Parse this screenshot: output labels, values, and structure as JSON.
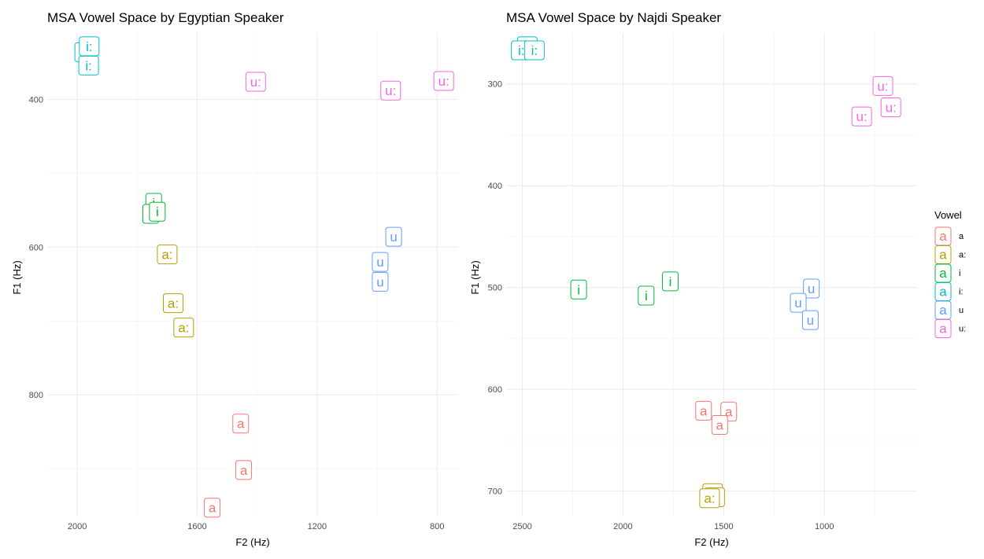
{
  "chart_data": [
    {
      "type": "scatter",
      "title": "MSA Vowel Space by Egyptian Speaker",
      "xlabel": "F2 (Hz)",
      "ylabel": "F1 (Hz)",
      "x_reversed": true,
      "y_reversed": true,
      "xlim": [
        2100,
        730
      ],
      "ylim": [
        310,
        965
      ],
      "x_ticks": [
        2000,
        1600,
        1200,
        800
      ],
      "y_ticks": [
        400,
        600,
        800
      ],
      "points": [
        {
          "vowel": "i:",
          "f2": 1975,
          "f1": 336
        },
        {
          "vowel": "i:",
          "f2": 1960,
          "f1": 328
        },
        {
          "vowel": "i:",
          "f2": 1962,
          "f1": 354
        },
        {
          "vowel": "u:",
          "f2": 1405,
          "f1": 376
        },
        {
          "vowel": "u:",
          "f2": 955,
          "f1": 388
        },
        {
          "vowel": "u:",
          "f2": 778,
          "f1": 375
        },
        {
          "vowel": "i",
          "f2": 1745,
          "f1": 540
        },
        {
          "vowel": "i",
          "f2": 1755,
          "f1": 555
        },
        {
          "vowel": "i",
          "f2": 1733,
          "f1": 552
        },
        {
          "vowel": "u",
          "f2": 945,
          "f1": 586
        },
        {
          "vowel": "u",
          "f2": 990,
          "f1": 620
        },
        {
          "vowel": "u",
          "f2": 990,
          "f1": 647
        },
        {
          "vowel": "a:",
          "f2": 1700,
          "f1": 610
        },
        {
          "vowel": "a:",
          "f2": 1680,
          "f1": 676
        },
        {
          "vowel": "a:",
          "f2": 1645,
          "f1": 709
        },
        {
          "vowel": "a",
          "f2": 1455,
          "f1": 839
        },
        {
          "vowel": "a",
          "f2": 1445,
          "f1": 902
        },
        {
          "vowel": "a",
          "f2": 1550,
          "f1": 953
        }
      ]
    },
    {
      "type": "scatter",
      "title": "MSA Vowel Space by Najdi Speaker",
      "xlabel": "F2 (Hz)",
      "ylabel": "F1 (Hz)",
      "x_reversed": true,
      "y_reversed": true,
      "xlim": [
        2580,
        540
      ],
      "ylim": [
        250,
        725
      ],
      "x_ticks": [
        2500,
        2000,
        1500,
        1000
      ],
      "y_ticks": [
        300,
        400,
        500,
        600,
        700
      ],
      "points": [
        {
          "vowel": "i:",
          "f2": 2475,
          "f1": 263
        },
        {
          "vowel": "i:",
          "f2": 2505,
          "f1": 267
        },
        {
          "vowel": "i:",
          "f2": 2440,
          "f1": 267
        },
        {
          "vowel": "u:",
          "f2": 710,
          "f1": 302
        },
        {
          "vowel": "u:",
          "f2": 815,
          "f1": 332
        },
        {
          "vowel": "u:",
          "f2": 670,
          "f1": 323
        },
        {
          "vowel": "i",
          "f2": 2220,
          "f1": 502
        },
        {
          "vowel": "i",
          "f2": 1885,
          "f1": 508
        },
        {
          "vowel": "i",
          "f2": 1765,
          "f1": 494
        },
        {
          "vowel": "u",
          "f2": 1065,
          "f1": 501
        },
        {
          "vowel": "u",
          "f2": 1130,
          "f1": 515
        },
        {
          "vowel": "u",
          "f2": 1070,
          "f1": 532
        },
        {
          "vowel": "a",
          "f2": 1600,
          "f1": 621
        },
        {
          "vowel": "a",
          "f2": 1475,
          "f1": 622
        },
        {
          "vowel": "a",
          "f2": 1520,
          "f1": 635
        },
        {
          "vowel": "a:",
          "f2": 1555,
          "f1": 702
        },
        {
          "vowel": "a:",
          "f2": 1545,
          "f1": 706
        },
        {
          "vowel": "a:",
          "f2": 1570,
          "f1": 707
        }
      ]
    }
  ],
  "legend": {
    "title": "Vowel",
    "placement": "right",
    "key_glyph": "a",
    "items": [
      {
        "label": "a",
        "color": "#F8766D"
      },
      {
        "label": "a:",
        "color": "#B79F00"
      },
      {
        "label": "i",
        "color": "#00BA38"
      },
      {
        "label": "i:",
        "color": "#00BFC4"
      },
      {
        "label": "u",
        "color": "#619CFF"
      },
      {
        "label": "u:",
        "color": "#F564E3"
      }
    ]
  }
}
